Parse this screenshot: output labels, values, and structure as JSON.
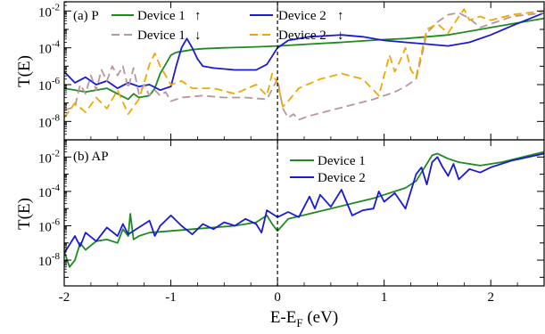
{
  "chart_data": [
    {
      "type": "line",
      "panel_label": "(a) P",
      "xlabel": "E-E",
      "xlabel_sub": "F",
      "xlabel_unit": " (eV)",
      "ylabel": "T(E)",
      "xlim": [
        -2,
        2.5
      ],
      "ylim_log10": [
        -9,
        -1.5
      ],
      "log_y": true,
      "x_ticks": [
        -2,
        -1,
        0,
        1,
        2
      ],
      "y_ticks": [
        {
          "base": "10",
          "exp": "-2",
          "log": -2
        },
        {
          "base": "10",
          "exp": "-4",
          "log": -4
        },
        {
          "base": "10",
          "exp": "-6",
          "log": -6
        },
        {
          "base": "10",
          "exp": "-8",
          "log": -8
        }
      ],
      "fermi_line_x": 0,
      "series": [
        {
          "name": "Device 1",
          "arrow": "↑",
          "color": "#1f8b1f",
          "dash": "",
          "x": [
            -2.0,
            -1.8,
            -1.6,
            -1.5,
            -1.4,
            -1.35,
            -1.3,
            -1.2,
            -1.15,
            -1.1,
            -1.05,
            -1.0,
            -0.95,
            -0.9,
            -0.85,
            -0.8,
            -0.7,
            -0.5,
            -0.2,
            0.0,
            0.3,
            0.6,
            1.0,
            1.2,
            1.4,
            1.6,
            1.8,
            2.0,
            2.2,
            2.5
          ],
          "log_y": [
            -6.2,
            -6.4,
            -6.2,
            -6.5,
            -6.8,
            -6.5,
            -6.7,
            -6.6,
            -6.2,
            -5.4,
            -4.9,
            -4.4,
            -4.25,
            -4.2,
            -4.15,
            -4.1,
            -4.05,
            -4.0,
            -3.95,
            -3.9,
            -3.8,
            -3.7,
            -3.55,
            -3.5,
            -3.4,
            -3.3,
            -3.1,
            -2.9,
            -2.7,
            -2.4
          ]
        },
        {
          "name": "Device 2",
          "arrow": "↑",
          "color": "#1a1ad6",
          "dash": "",
          "x": [
            -2.0,
            -1.9,
            -1.8,
            -1.7,
            -1.6,
            -1.5,
            -1.4,
            -1.3,
            -1.2,
            -1.1,
            -1.0,
            -0.95,
            -0.9,
            -0.85,
            -0.8,
            -0.75,
            -0.7,
            -0.6,
            -0.4,
            -0.2,
            -0.1,
            0.0,
            0.1,
            0.3,
            0.6,
            0.8,
            1.0,
            1.2,
            1.4,
            1.6,
            1.8,
            2.0,
            2.2,
            2.5
          ],
          "log_y": [
            -5.3,
            -5.9,
            -5.6,
            -6.0,
            -5.8,
            -6.2,
            -5.9,
            -6.1,
            -6.0,
            -6.3,
            -6.1,
            -5.0,
            -4.0,
            -3.5,
            -4.0,
            -4.6,
            -5.0,
            -5.1,
            -5.2,
            -5.2,
            -4.9,
            -4.0,
            -3.6,
            -3.4,
            -3.3,
            -3.4,
            -3.6,
            -3.7,
            -3.8,
            -3.9,
            -3.7,
            -3.3,
            -2.8,
            -2.1
          ]
        },
        {
          "name": "Device 1",
          "arrow": "↓",
          "color": "#b8969e",
          "dash": "9 5",
          "x": [
            -2.0,
            -1.9,
            -1.85,
            -1.8,
            -1.75,
            -1.7,
            -1.65,
            -1.6,
            -1.55,
            -1.5,
            -1.45,
            -1.4,
            -1.35,
            -1.3,
            -1.25,
            -1.2,
            -1.15,
            -1.1,
            -1.05,
            -1.0,
            -0.9,
            -0.7,
            -0.5,
            -0.3,
            -0.1,
            0.0,
            0.05,
            0.1,
            0.15,
            0.2,
            0.3,
            0.5,
            0.7,
            0.9,
            1.1,
            1.2,
            1.3,
            1.35,
            1.4,
            1.5,
            1.6,
            1.7,
            1.8,
            1.9,
            2.0,
            2.2,
            2.5
          ],
          "log_y": [
            -7.4,
            -7.2,
            -6.0,
            -6.5,
            -5.5,
            -6.3,
            -5.2,
            -5.8,
            -5.0,
            -5.5,
            -5.0,
            -6.2,
            -5.1,
            -6.5,
            -6.0,
            -6.6,
            -6.3,
            -6.6,
            -6.4,
            -6.9,
            -6.7,
            -6.6,
            -6.7,
            -6.7,
            -6.8,
            -5.7,
            -7.3,
            -7.8,
            -7.6,
            -7.9,
            -7.7,
            -7.4,
            -7.1,
            -6.8,
            -6.4,
            -6.1,
            -5.7,
            -4.5,
            -3.2,
            -2.6,
            -2.2,
            -2.1,
            -2.4,
            -2.9,
            -2.7,
            -2.3,
            -2.1
          ]
        },
        {
          "name": "Device 2",
          "arrow": "↓",
          "color": "#f0a800",
          "dash": "9 5",
          "x": [
            -2.0,
            -1.9,
            -1.8,
            -1.7,
            -1.6,
            -1.5,
            -1.4,
            -1.3,
            -1.25,
            -1.2,
            -1.15,
            -1.1,
            -1.05,
            -1.0,
            -0.9,
            -0.8,
            -0.6,
            -0.4,
            -0.2,
            -0.1,
            -0.05,
            0.0,
            0.05,
            0.1,
            0.2,
            0.4,
            0.6,
            0.8,
            0.9,
            0.95,
            1.0,
            1.05,
            1.1,
            1.15,
            1.2,
            1.25,
            1.3,
            1.4,
            1.5,
            1.6,
            1.7,
            1.75,
            1.8,
            1.9,
            2.0,
            2.2,
            2.5
          ],
          "log_y": [
            -7.8,
            -7.0,
            -7.5,
            -6.7,
            -7.3,
            -6.3,
            -7.6,
            -6.8,
            -5.9,
            -4.9,
            -4.3,
            -5.0,
            -5.5,
            -6.0,
            -5.8,
            -6.2,
            -6.2,
            -6.5,
            -6.0,
            -6.6,
            -5.4,
            -5.9,
            -7.2,
            -6.9,
            -6.2,
            -5.7,
            -5.4,
            -5.7,
            -6.3,
            -6.6,
            -5.5,
            -4.4,
            -5.3,
            -4.7,
            -4.0,
            -5.2,
            -5.6,
            -3.0,
            -2.7,
            -3.2,
            -2.3,
            -1.9,
            -2.5,
            -2.3,
            -2.5,
            -2.2,
            -2.0
          ]
        }
      ]
    },
    {
      "type": "line",
      "panel_label": "(b) AP",
      "xlabel": "E-E",
      "xlabel_sub": "F",
      "xlabel_unit": " (eV)",
      "ylabel": "T(E)",
      "xlim": [
        -2,
        2.5
      ],
      "ylim_log10": [
        -9.5,
        -1
      ],
      "log_y": true,
      "x_ticks": [
        -2,
        -1,
        0,
        1,
        2
      ],
      "y_ticks": [
        {
          "base": "10",
          "exp": "-2",
          "log": -2
        },
        {
          "base": "10",
          "exp": "-4",
          "log": -4
        },
        {
          "base": "10",
          "exp": "-6",
          "log": -6
        },
        {
          "base": "10",
          "exp": "-8",
          "log": -8
        }
      ],
      "fermi_line_x": 0,
      "series": [
        {
          "name": "Device 1",
          "color": "#1f8b1f",
          "dash": "",
          "x": [
            -2.0,
            -1.95,
            -1.9,
            -1.85,
            -1.8,
            -1.7,
            -1.6,
            -1.5,
            -1.45,
            -1.4,
            -1.38,
            -1.35,
            -1.3,
            -1.2,
            -1.0,
            -0.8,
            -0.6,
            -0.4,
            -0.2,
            -0.1,
            -0.05,
            0.0,
            0.1,
            0.3,
            0.5,
            0.7,
            0.9,
            1.0,
            1.1,
            1.2,
            1.3,
            1.4,
            1.45,
            1.5,
            1.6,
            1.7,
            1.9,
            2.1,
            2.5
          ],
          "log_y": [
            -7.5,
            -8.4,
            -8.0,
            -7.0,
            -7.4,
            -6.9,
            -6.8,
            -7.0,
            -6.2,
            -6.6,
            -5.3,
            -6.8,
            -6.6,
            -6.4,
            -6.3,
            -6.2,
            -6.1,
            -6.0,
            -5.8,
            -5.4,
            -5.9,
            -6.3,
            -5.6,
            -5.3,
            -5.0,
            -4.7,
            -4.4,
            -4.2,
            -4.0,
            -3.8,
            -3.4,
            -2.4,
            -1.9,
            -1.8,
            -2.1,
            -2.3,
            -2.5,
            -2.3,
            -1.7
          ]
        },
        {
          "name": "Device 2",
          "color": "#1a1ad6",
          "dash": "",
          "x": [
            -2.0,
            -1.9,
            -1.85,
            -1.8,
            -1.7,
            -1.6,
            -1.5,
            -1.45,
            -1.4,
            -1.3,
            -1.2,
            -1.15,
            -1.1,
            -1.0,
            -0.9,
            -0.8,
            -0.7,
            -0.6,
            -0.5,
            -0.4,
            -0.3,
            -0.2,
            -0.15,
            -0.1,
            0.0,
            0.1,
            0.2,
            0.3,
            0.35,
            0.4,
            0.5,
            0.6,
            0.7,
            0.8,
            0.9,
            0.95,
            1.0,
            1.1,
            1.2,
            1.3,
            1.35,
            1.4,
            1.45,
            1.5,
            1.55,
            1.6,
            1.65,
            1.7,
            1.8,
            1.9,
            2.0,
            2.2,
            2.5
          ],
          "log_y": [
            -7.6,
            -6.6,
            -7.2,
            -6.4,
            -6.9,
            -6.1,
            -6.6,
            -5.9,
            -6.5,
            -6.1,
            -5.7,
            -6.6,
            -6.0,
            -5.4,
            -6.0,
            -6.5,
            -5.9,
            -6.2,
            -5.8,
            -6.0,
            -5.6,
            -5.9,
            -6.4,
            -5.1,
            -5.5,
            -5.2,
            -5.5,
            -4.3,
            -5.0,
            -4.2,
            -4.9,
            -3.9,
            -5.4,
            -5.1,
            -5.0,
            -4.0,
            -4.6,
            -4.1,
            -5.0,
            -3.0,
            -2.6,
            -3.6,
            -2.3,
            -2.0,
            -2.6,
            -3.1,
            -2.4,
            -3.3,
            -2.7,
            -2.9,
            -2.6,
            -2.2,
            -1.8
          ]
        }
      ]
    }
  ]
}
